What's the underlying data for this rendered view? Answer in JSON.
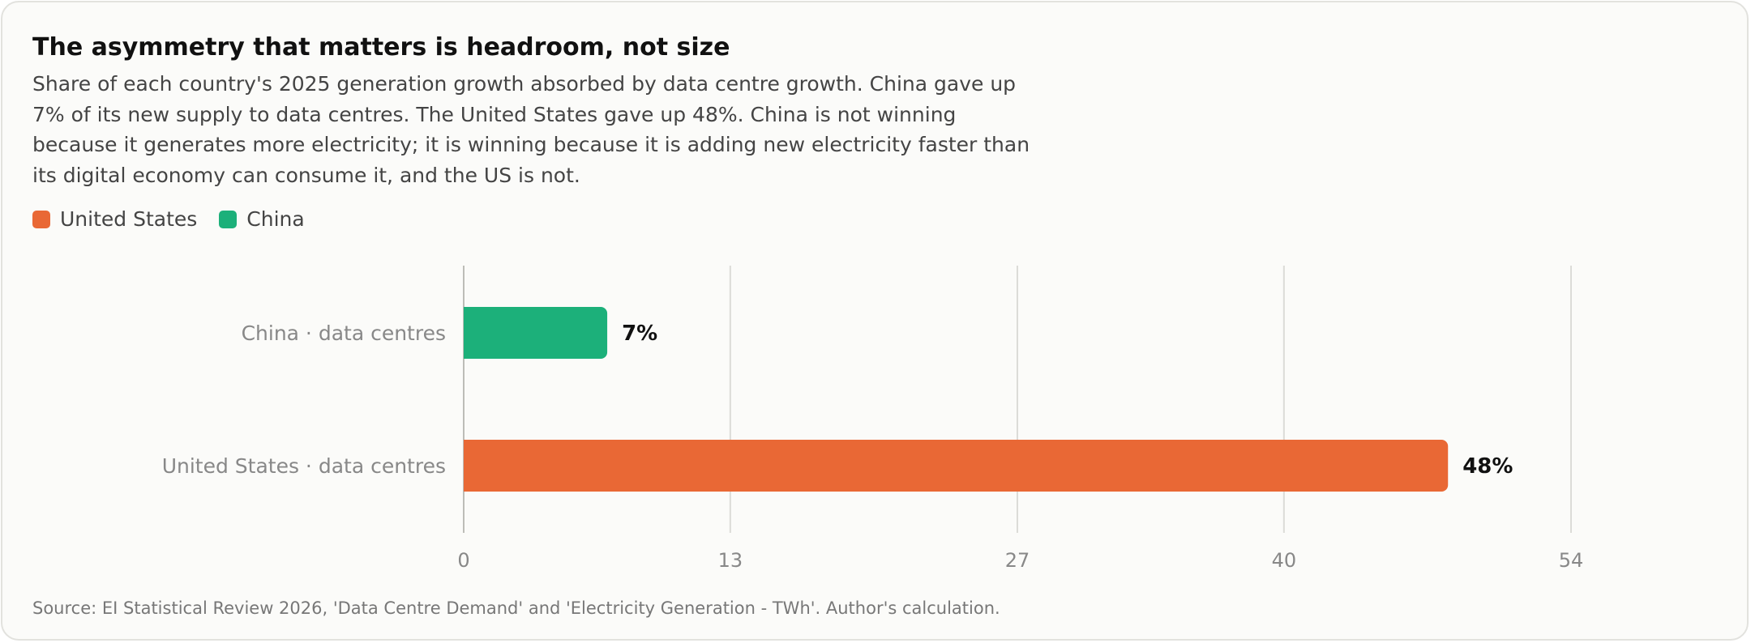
{
  "title": "The asymmetry that matters is headroom, not size",
  "subtitle": "Share of each country's 2025 generation growth absorbed by data centre growth. China gave up 7% of its new supply to data centres. The United States gave up 48%. China is not winning because it generates more electricity; it is winning because it is adding new electricity faster than its digital economy can consume it, and the US is not.",
  "legend": [
    {
      "label": "United States",
      "color": "#e96835"
    },
    {
      "label": "China",
      "color": "#1cb07a"
    }
  ],
  "source": "Source: EI Statistical Review 2026, 'Data Centre Demand' and 'Electricity Generation - TWh'. Author's calculation.",
  "chart_data": {
    "type": "bar",
    "orientation": "horizontal",
    "categories": [
      "China · data centres",
      "United States · data centres"
    ],
    "values": [
      7,
      48
    ],
    "value_labels": [
      "7%",
      "48%"
    ],
    "colors": [
      "#1cb07a",
      "#e96835"
    ],
    "xlim": [
      0,
      54
    ],
    "xticks": [
      0,
      13,
      27,
      40,
      54
    ],
    "grid": true
  }
}
